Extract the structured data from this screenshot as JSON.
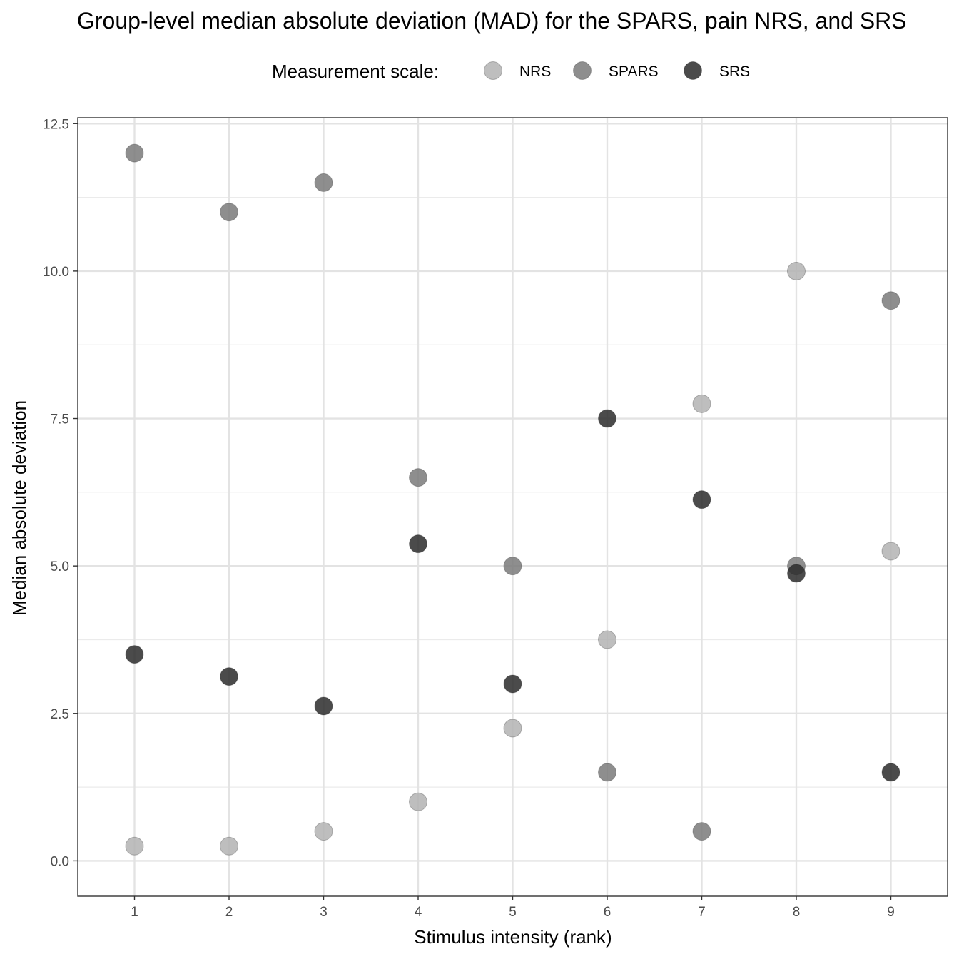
{
  "chart_data": {
    "type": "scatter",
    "title": "Group-level median absolute deviation (MAD) for the SPARS, pain NRS, and SRS",
    "xlabel": "Stimulus intensity (rank)",
    "ylabel": "Median absolute deviation",
    "xlim": [
      0.4,
      9.6
    ],
    "ylim": [
      -0.6,
      12.6
    ],
    "x_ticks": [
      1,
      2,
      3,
      4,
      5,
      6,
      7,
      8,
      9
    ],
    "x_tick_labels": [
      "1",
      "2",
      "3",
      "4",
      "5",
      "6",
      "7",
      "8",
      "9"
    ],
    "y_ticks": [
      0,
      2.5,
      5,
      7.5,
      10,
      12.5
    ],
    "y_tick_labels": [
      "0.0",
      "2.5",
      "5.0",
      "7.5",
      "10.0",
      "12.5"
    ],
    "grid": true,
    "legend": {
      "title": "Measurement scale:",
      "position": "top"
    },
    "series": [
      {
        "name": "NRS",
        "color": "#b3b3b3",
        "points": [
          [
            1,
            0.25
          ],
          [
            2,
            0.25
          ],
          [
            3,
            0.5
          ],
          [
            4,
            1.0
          ],
          [
            5,
            2.25
          ],
          [
            6,
            3.75
          ],
          [
            7,
            7.75
          ],
          [
            8,
            10.0
          ],
          [
            9,
            5.25
          ]
        ]
      },
      {
        "name": "SPARS",
        "color": "#7a7a7a",
        "points": [
          [
            1,
            12.0
          ],
          [
            2,
            11.0
          ],
          [
            3,
            11.5
          ],
          [
            4,
            6.5
          ],
          [
            5,
            5.0
          ],
          [
            6,
            1.5
          ],
          [
            7,
            0.5
          ],
          [
            8,
            5.0
          ],
          [
            9,
            9.5
          ]
        ]
      },
      {
        "name": "SRS",
        "color": "#2b2b2b",
        "points": [
          [
            1,
            3.5
          ],
          [
            2,
            3.125
          ],
          [
            3,
            2.625
          ],
          [
            4,
            5.375
          ],
          [
            5,
            3.0
          ],
          [
            6,
            7.5
          ],
          [
            7,
            6.125
          ],
          [
            8,
            4.875
          ],
          [
            9,
            1.5
          ]
        ]
      }
    ]
  }
}
